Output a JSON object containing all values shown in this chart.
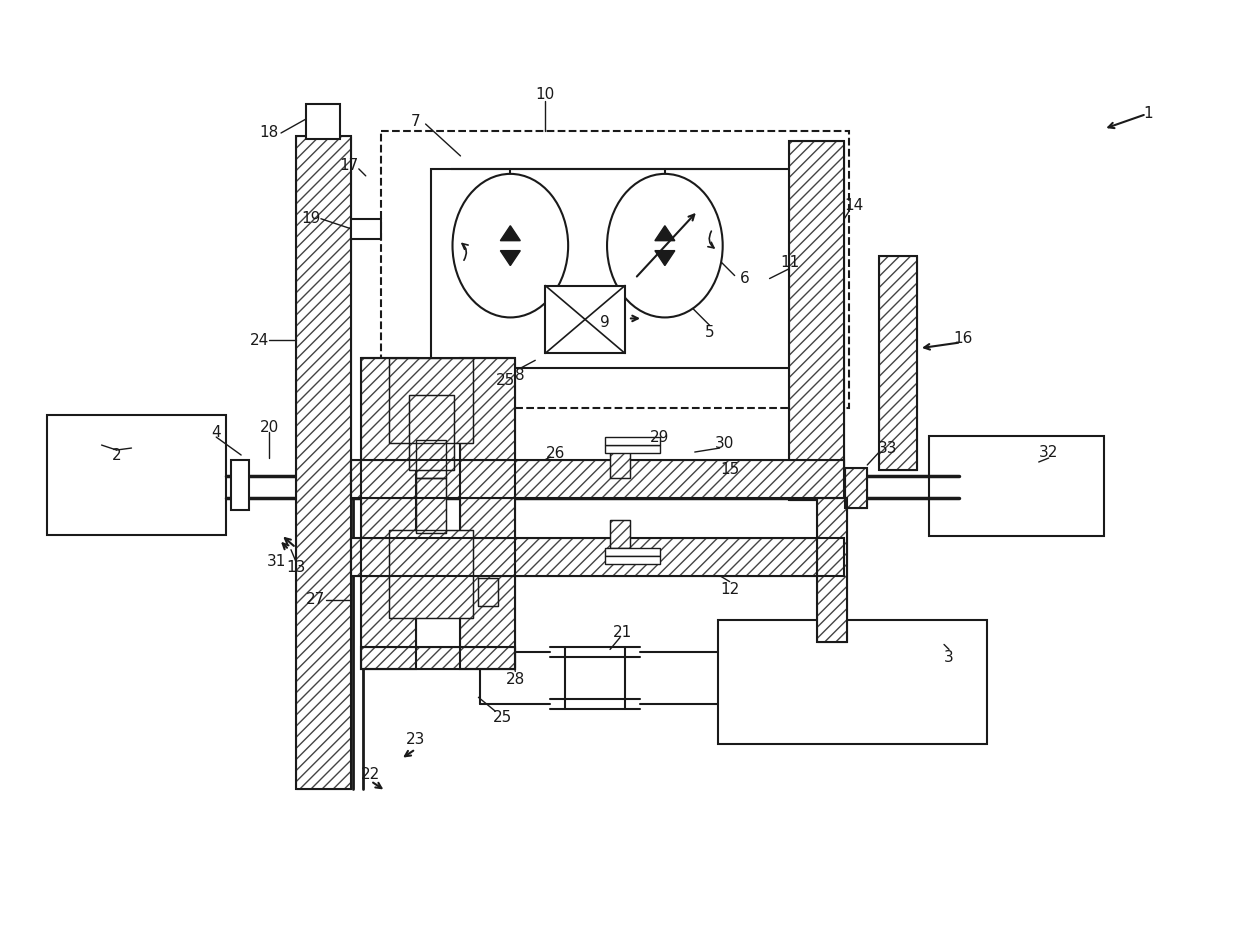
{
  "bg_color": "#ffffff",
  "line_color": "#1a1a1a",
  "fig_width": 12.4,
  "fig_height": 9.25
}
